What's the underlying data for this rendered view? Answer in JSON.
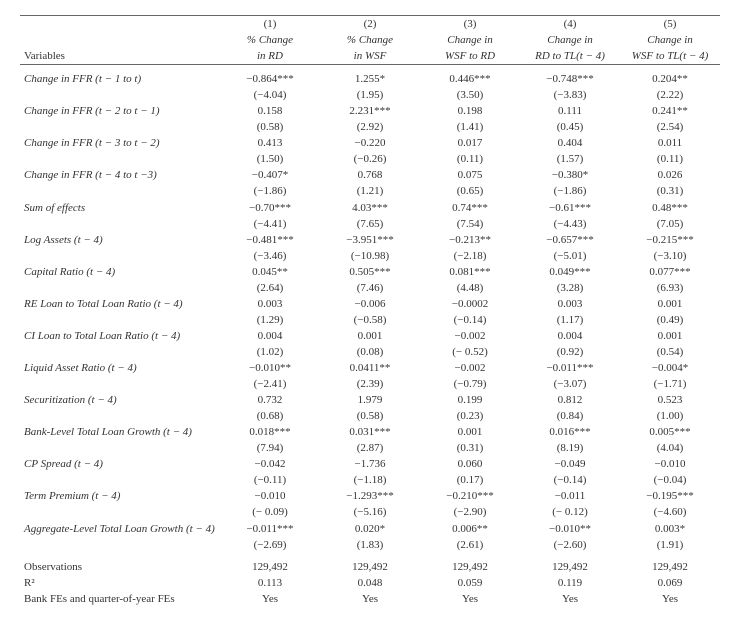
{
  "headers": {
    "var_label": "Variables",
    "cols": [
      {
        "num": "(1)",
        "l1": "% Change",
        "l2": "in RD"
      },
      {
        "num": "(2)",
        "l1": "% Change",
        "l2": "in WSF"
      },
      {
        "num": "(3)",
        "l1": "Change in",
        "l2": "WSF to RD"
      },
      {
        "num": "(4)",
        "l1": "Change in",
        "l2": "RD to TL(t − 4)"
      },
      {
        "num": "(5)",
        "l1": "Change in",
        "l2": "WSF to TL(t − 4)"
      }
    ]
  },
  "rows": [
    {
      "label": "Change in FFR (t − 1 to t)",
      "v": [
        "−0.864***",
        "1.255*",
        "0.446***",
        "−0.748***",
        "0.204**"
      ],
      "se": [
        "(−4.04)",
        "(1.95)",
        "(3.50)",
        "(−3.83)",
        "(2.22)"
      ],
      "sect": true
    },
    {
      "label": "Change in FFR (t − 2 to t − 1)",
      "v": [
        "0.158",
        "2.231***",
        "0.198",
        "0.111",
        "0.241**"
      ],
      "se": [
        "(0.58)",
        "(2.92)",
        "(1.41)",
        "(0.45)",
        "(2.54)"
      ]
    },
    {
      "label": "Change in FFR (t − 3 to t − 2)",
      "v": [
        "0.413",
        "−0.220",
        "0.017",
        "0.404",
        "0.011"
      ],
      "se": [
        "(1.50)",
        "(−0.26)",
        "(0.11)",
        "(1.57)",
        "(0.11)"
      ]
    },
    {
      "label": "Change in FFR (t − 4 to t −3)",
      "v": [
        "−0.407*",
        "0.768",
        "0.075",
        "−0.380*",
        "0.026"
      ],
      "se": [
        "(−1.86)",
        "(1.21)",
        "(0.65)",
        "(−1.86)",
        "(0.31)"
      ]
    },
    {
      "label": "Sum of effects",
      "v": [
        "−0.70***",
        "4.03***",
        "0.74***",
        "−0.61***",
        "0.48***"
      ],
      "se": [
        "(−4.41)",
        "(7.65)",
        "(7.54)",
        "(−4.43)",
        "(7.05)"
      ]
    },
    {
      "label": "Log Assets (t − 4)",
      "v": [
        "−0.481***",
        "−3.951***",
        "−0.213**",
        "−0.657***",
        "−0.215***"
      ],
      "se": [
        "(−3.46)",
        "(−10.98)",
        "(−2.18)",
        "(−5.01)",
        "(−3.10)"
      ]
    },
    {
      "label": "Capital Ratio (t − 4)",
      "v": [
        "0.045**",
        "0.505***",
        "0.081***",
        "0.049***",
        "0.077***"
      ],
      "se": [
        "(2.64)",
        "(7.46)",
        "(4.48)",
        "(3.28)",
        "(6.93)"
      ]
    },
    {
      "label": "RE Loan to Total Loan Ratio (t − 4)",
      "v": [
        "0.003",
        "−0.006",
        "−0.0002",
        "0.003",
        "0.001"
      ],
      "se": [
        "(1.29)",
        "(−0.58)",
        "(−0.14)",
        "(1.17)",
        "(0.49)"
      ]
    },
    {
      "label": "CI Loan to Total Loan Ratio (t − 4)",
      "v": [
        "0.004",
        "0.001",
        "−0.002",
        "0.004",
        "0.001"
      ],
      "se": [
        "(1.02)",
        "(0.08)",
        "(− 0.52)",
        "(0.92)",
        "(0.54)"
      ]
    },
    {
      "label": "Liquid Asset Ratio (t − 4)",
      "v": [
        "−0.010**",
        "0.0411**",
        "−0.002",
        "−0.011***",
        "−0.004*"
      ],
      "se": [
        "(−2.41)",
        "(2.39)",
        "(−0.79)",
        "(−3.07)",
        "(−1.71)"
      ]
    },
    {
      "label": "Securitization (t − 4)",
      "v": [
        "0.732",
        "1.979",
        "0.199",
        "0.812",
        "0.523"
      ],
      "se": [
        "(0.68)",
        "(0.58)",
        "(0.23)",
        "(0.84)",
        "(1.00)"
      ]
    },
    {
      "label": "Bank-Level Total Loan Growth (t − 4)",
      "v": [
        "0.018***",
        "0.031***",
        "0.001",
        "0.016***",
        "0.005***"
      ],
      "se": [
        "(7.94)",
        "(2.87)",
        "(0.31)",
        "(8.19)",
        "(4.04)"
      ]
    },
    {
      "label": "CP Spread (t − 4)",
      "v": [
        "−0.042",
        "−1.736",
        "0.060",
        "−0.049",
        "−0.010"
      ],
      "se": [
        "(−0.11)",
        "(−1.18)",
        "(0.17)",
        "(−0.14)",
        "(−0.04)"
      ]
    },
    {
      "label": "Term Premium (t − 4)",
      "v": [
        "−0.010",
        "−1.293***",
        "−0.210***",
        "−0.011",
        "−0.195***"
      ],
      "se": [
        "(− 0.09)",
        "(−5.16)",
        "(−2.90)",
        "(− 0.12)",
        "(−4.60)"
      ]
    },
    {
      "label": "Aggregate-Level Total Loan Growth (t − 4)",
      "v": [
        "−0.011***",
        "0.020*",
        "0.006**",
        "−0.010**",
        "0.003*"
      ],
      "se": [
        "(−2.69)",
        "(1.83)",
        "(2.61)",
        "(−2.60)",
        "(1.91)"
      ]
    }
  ],
  "footer": [
    {
      "label": "Observations",
      "v": [
        "129,492",
        "129,492",
        "129,492",
        "129,492",
        "129,492"
      ],
      "sect": true
    },
    {
      "label": "R²",
      "v": [
        "0.113",
        "0.048",
        "0.059",
        "0.119",
        "0.069"
      ],
      "plain": true
    },
    {
      "label": "Bank FEs and quarter-of-year FEs",
      "v": [
        "Yes",
        "Yes",
        "Yes",
        "Yes",
        "Yes"
      ],
      "plain": true
    }
  ]
}
